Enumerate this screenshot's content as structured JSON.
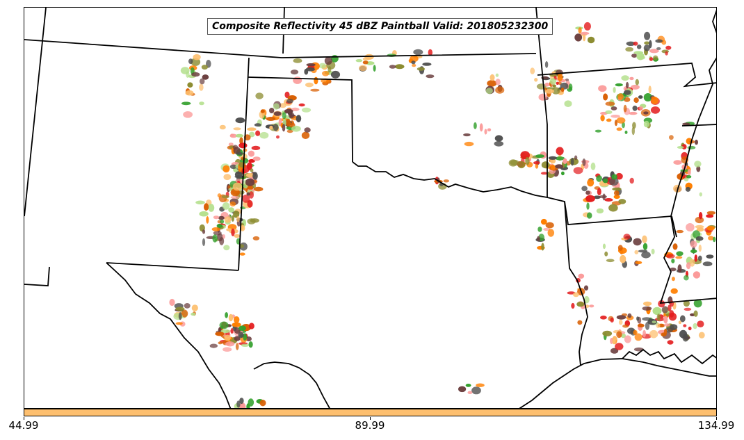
{
  "title": "Composite Reflectivity 45 dBZ Paintball Valid: 201805232300",
  "colorbar": {
    "color": "#fdbf6f",
    "tick_labels": [
      "44.99",
      "89.99",
      "134.99"
    ]
  },
  "palette": [
    "#e31a1c",
    "#fb9a99",
    "#ff7f00",
    "#fdbf6f",
    "#33a02c",
    "#b2df8a",
    "#6a3d3d",
    "#8c8c30",
    "#4d4d4d",
    "#d95f02"
  ],
  "map": {
    "features": [
      "state-boundaries",
      "coastline",
      "river-boundaries"
    ]
  }
}
